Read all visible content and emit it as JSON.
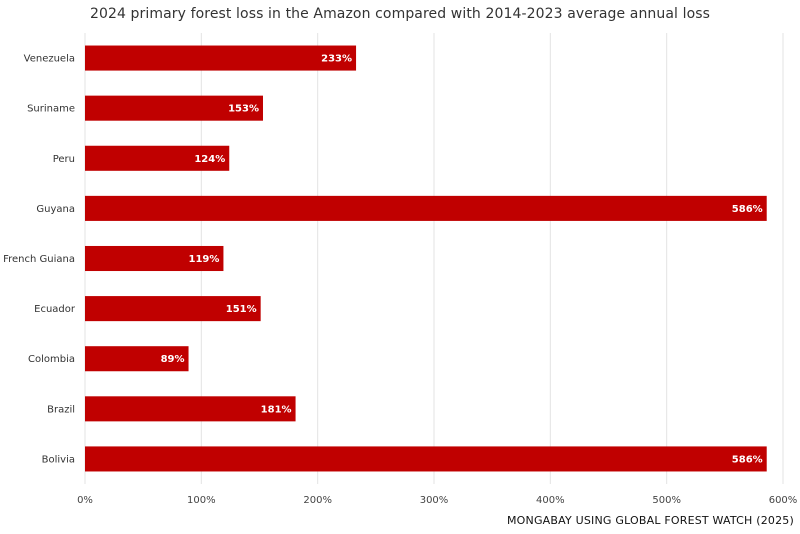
{
  "chart_data": {
    "type": "bar",
    "orientation": "horizontal",
    "title": "2024 primary forest loss in the Amazon compared with 2014-2023 average annual loss",
    "source": "MONGABAY USING GLOBAL FOREST WATCH (2025)",
    "categories": [
      "Venezuela",
      "Suriname",
      "Peru",
      "Guyana",
      "French Guiana",
      "Ecuador",
      "Colombia",
      "Brazil",
      "Bolivia"
    ],
    "values": [
      233,
      153,
      124,
      586,
      119,
      151,
      89,
      181,
      586
    ],
    "value_labels": [
      "233%",
      "153%",
      "124%",
      "586%",
      "119%",
      "151%",
      "89%",
      "181%",
      "586%"
    ],
    "xlim": [
      0,
      600
    ],
    "x_ticks": [
      0,
      100,
      200,
      300,
      400,
      500,
      600
    ],
    "x_tick_labels": [
      "0%",
      "100%",
      "200%",
      "300%",
      "400%",
      "500%",
      "600%"
    ],
    "xlabel": "",
    "ylabel": "",
    "grid": true,
    "bar_color": "#c00000"
  }
}
